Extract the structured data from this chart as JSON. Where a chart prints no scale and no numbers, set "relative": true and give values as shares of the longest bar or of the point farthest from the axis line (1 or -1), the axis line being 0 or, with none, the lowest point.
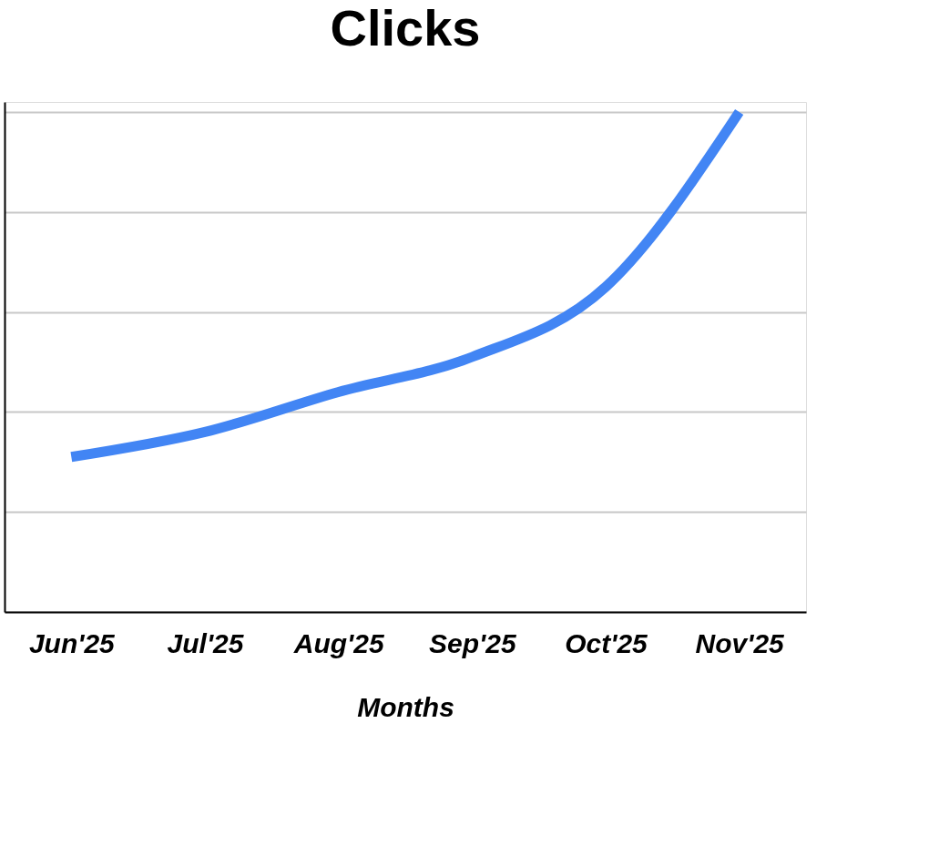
{
  "chart_data": {
    "type": "line",
    "title": "Clicks",
    "xlabel": "Months",
    "categories": [
      "Jun'25",
      "Jul'25",
      "Aug'25",
      "Sep'25",
      "Oct'25",
      "Nov'25"
    ],
    "series": [
      {
        "color": "#4285f4",
        "values": [
          0.31,
          0.36,
          0.44,
          0.51,
          0.65,
          1
        ]
      }
    ],
    "relative": true,
    "grid": "y",
    "marker": "none",
    "line_style": "solid"
  }
}
